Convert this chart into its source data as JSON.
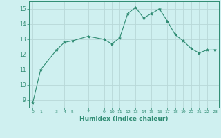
{
  "x": [
    0,
    1,
    3,
    4,
    5,
    7,
    9,
    10,
    11,
    12,
    13,
    14,
    15,
    16,
    17,
    18,
    19,
    20,
    21,
    22,
    23
  ],
  "y": [
    8.8,
    11.0,
    12.3,
    12.8,
    12.9,
    13.2,
    13.0,
    12.7,
    13.1,
    14.7,
    15.1,
    14.4,
    14.7,
    15.0,
    14.2,
    13.3,
    12.9,
    12.4,
    12.1,
    12.3,
    12.3
  ],
  "xlim": [
    -0.5,
    23.5
  ],
  "ylim": [
    8.5,
    15.5
  ],
  "yticks": [
    9,
    10,
    11,
    12,
    13,
    14,
    15
  ],
  "xticks": [
    0,
    1,
    3,
    4,
    5,
    7,
    9,
    10,
    11,
    12,
    13,
    14,
    15,
    16,
    17,
    18,
    19,
    20,
    21,
    22,
    23
  ],
  "xlabel": "Humidex (Indice chaleur)",
  "line_color": "#2e8b72",
  "marker": "*",
  "marker_size": 3,
  "background_color": "#cff0f0",
  "grid_color": "#b8d8d8",
  "title": ""
}
